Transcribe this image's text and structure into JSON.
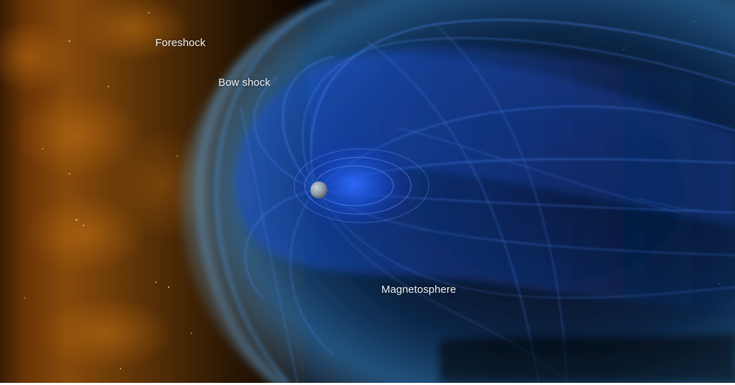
{
  "labels": {
    "foreshock": "Foreshock",
    "bow_shock": "Bow shock",
    "magnetosphere": "Magnetosphere"
  },
  "colors": {
    "background": "#020308",
    "solar_wind": "#b0650f",
    "bow_shock": "#2a86d6",
    "magnetosphere": "#1a56e0",
    "earth": "#8d9aa6",
    "label_text": "#f1f4f8"
  }
}
